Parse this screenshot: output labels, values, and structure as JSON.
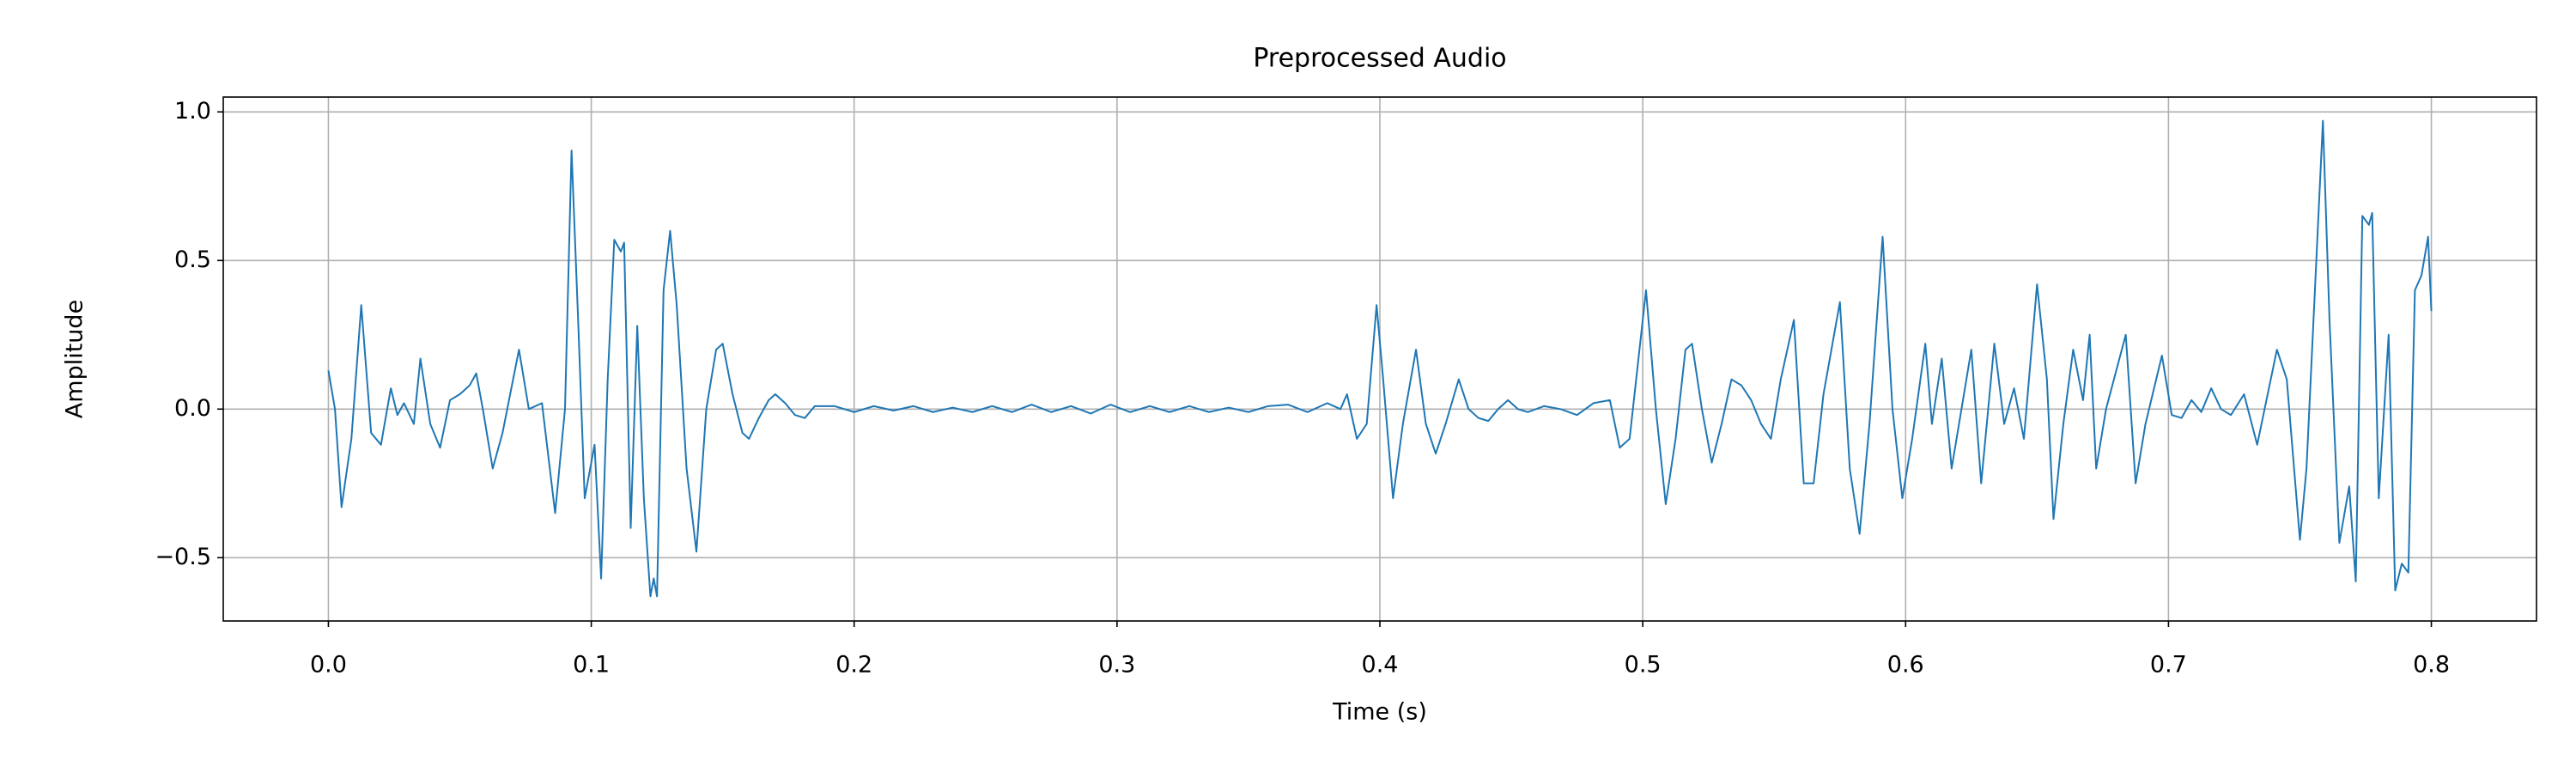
{
  "chart_data": {
    "type": "line",
    "title": "Preprocessed Audio",
    "x_label": "Time (s)",
    "y_label": "Amplitude",
    "x": [
      0,
      0.0025,
      0.005,
      0.00875,
      0.0125,
      0.01625,
      0.02,
      0.02375,
      0.02625,
      0.02875,
      0.0325,
      0.035,
      0.03875,
      0.0425,
      0.04625,
      0.05,
      0.05375,
      0.05625,
      0.05875,
      0.0625,
      0.06625,
      0.0725,
      0.07625,
      0.08125,
      0.08625,
      0.09,
      0.0925,
      0.095,
      0.0975,
      0.10125,
      0.10375,
      0.10625,
      0.10875,
      0.11125,
      0.1125,
      0.115,
      0.1175,
      0.12,
      0.1225,
      0.12375,
      0.125,
      0.1275,
      0.13,
      0.1325,
      0.13625,
      0.14,
      0.14375,
      0.1475,
      0.15,
      0.15375,
      0.1575,
      0.16,
      0.16375,
      0.1675,
      0.17,
      0.17375,
      0.1775,
      0.18125,
      0.185,
      0.1925,
      0.2,
      0.2075,
      0.215,
      0.2225,
      0.23,
      0.2375,
      0.245,
      0.2525,
      0.26,
      0.2675,
      0.275,
      0.2825,
      0.29,
      0.2975,
      0.305,
      0.3125,
      0.32,
      0.3275,
      0.335,
      0.3425,
      0.35,
      0.3575,
      0.365,
      0.3725,
      0.38,
      0.385,
      0.3875,
      0.39125,
      0.395,
      0.39875,
      0.40125,
      0.405,
      0.40875,
      0.41375,
      0.4175,
      0.42125,
      0.425,
      0.43,
      0.43375,
      0.4375,
      0.44125,
      0.445,
      0.44875,
      0.4525,
      0.45625,
      0.4625,
      0.46875,
      0.475,
      0.48125,
      0.4875,
      0.49125,
      0.495,
      0.50125,
      0.505,
      0.50875,
      0.5125,
      0.51625,
      0.51875,
      0.5225,
      0.52625,
      0.53,
      0.53375,
      0.5375,
      0.54125,
      0.545,
      0.54875,
      0.5525,
      0.5575,
      0.56125,
      0.565,
      0.56875,
      0.575,
      0.57875,
      0.5825,
      0.58625,
      0.59125,
      0.595,
      0.59875,
      0.6025,
      0.6075,
      0.61,
      0.61375,
      0.6175,
      0.62125,
      0.625,
      0.62875,
      0.63375,
      0.6375,
      0.64125,
      0.645,
      0.65,
      0.65375,
      0.65625,
      0.66,
      0.66375,
      0.6675,
      0.67,
      0.6725,
      0.67625,
      0.68375,
      0.6875,
      0.69125,
      0.6975,
      0.70125,
      0.705,
      0.70875,
      0.7125,
      0.71625,
      0.72,
      0.72375,
      0.72875,
      0.73375,
      0.74125,
      0.745,
      0.75,
      0.7525,
      0.75875,
      0.76125,
      0.765,
      0.76875,
      0.77125,
      0.77375,
      0.77625,
      0.7775,
      0.78,
      0.78375,
      0.78625,
      0.78875,
      0.79125,
      0.79375,
      0.79625,
      0.79875,
      0.8
    ],
    "series": [
      {
        "color": "#1f77b4",
        "values": [
          0.13,
          0,
          -0.33,
          -0.1,
          0.35,
          -0.08,
          -0.12,
          0.07,
          -0.02,
          0.02,
          -0.05,
          0.17,
          -0.05,
          -0.13,
          0.03,
          0.05,
          0.08,
          0.12,
          0,
          -0.2,
          -0.08,
          0.2,
          0,
          0.02,
          -0.35,
          0,
          0.87,
          0.3,
          -0.3,
          -0.12,
          -0.57,
          0.1,
          0.57,
          0.53,
          0.56,
          -0.4,
          0.28,
          -0.3,
          -0.63,
          -0.57,
          -0.63,
          0.4,
          0.6,
          0.35,
          -0.2,
          -0.48,
          0,
          0.2,
          0.22,
          0.05,
          -0.08,
          -0.1,
          -0.03,
          0.03,
          0.05,
          0.02,
          -0.02,
          -0.03,
          0.01,
          0.01,
          -0.01,
          0.01,
          -0.005,
          0.01,
          -0.01,
          0.005,
          -0.01,
          0.01,
          -0.01,
          0.015,
          -0.01,
          0.01,
          -0.015,
          0.015,
          -0.01,
          0.01,
          -0.01,
          0.01,
          -0.01,
          0.005,
          -0.01,
          0.01,
          0.015,
          -0.01,
          0.02,
          0,
          0.05,
          -0.1,
          -0.05,
          0.35,
          0.1,
          -0.3,
          -0.05,
          0.2,
          -0.05,
          -0.15,
          -0.05,
          0.1,
          0,
          -0.03,
          -0.04,
          0,
          0.03,
          0,
          -0.01,
          0.01,
          0,
          -0.02,
          0.02,
          0.03,
          -0.13,
          -0.1,
          0.4,
          0,
          -0.32,
          -0.1,
          0.2,
          0.22,
          0,
          -0.18,
          -0.05,
          0.1,
          0.08,
          0.03,
          -0.05,
          -0.1,
          0.1,
          0.3,
          -0.25,
          -0.25,
          0.05,
          0.36,
          -0.2,
          -0.42,
          -0.05,
          0.58,
          0,
          -0.3,
          -0.1,
          0.22,
          -0.05,
          0.17,
          -0.2,
          0,
          0.2,
          -0.25,
          0.22,
          -0.05,
          0.07,
          -0.1,
          0.42,
          0.1,
          -0.37,
          -0.05,
          0.2,
          0.03,
          0.25,
          -0.2,
          0,
          0.25,
          -0.25,
          -0.05,
          0.18,
          -0.02,
          -0.03,
          0.03,
          -0.01,
          0.07,
          0,
          -0.02,
          0.05,
          -0.12,
          0.2,
          0.1,
          -0.44,
          -0.2,
          0.97,
          0.3,
          -0.45,
          -0.26,
          -0.58,
          0.65,
          0.62,
          0.66,
          -0.3,
          0.25,
          -0.61,
          -0.52,
          -0.55,
          0.4,
          0.45,
          0.58,
          0.33
        ]
      }
    ],
    "xlim": [
      -0.04,
      0.84
    ],
    "ylim": [
      -0.713,
      1.05
    ],
    "xticks": [
      {
        "value": 0,
        "label": "0.0"
      },
      0.1,
      0.2,
      0.3,
      0.4,
      0.5,
      0.6,
      0.7,
      0.8
    ],
    "yticks": [
      {
        "value": -0.5,
        "label": "−0.5"
      },
      {
        "value": 0,
        "label": "0.0"
      },
      0.5,
      {
        "value": 1,
        "label": "1.0"
      }
    ],
    "grid": true
  }
}
